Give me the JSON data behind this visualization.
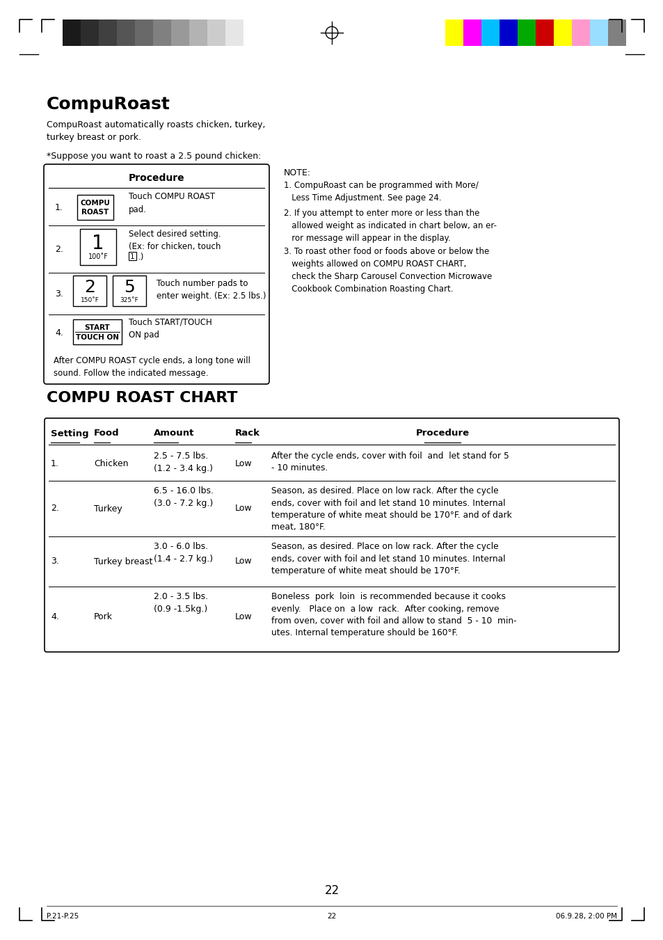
{
  "page_title": "CompuRoast",
  "page_subtitle": "CompuRoast automatically roasts chicken, turkey,\nturkey breast or pork.",
  "suppose_text": "*Suppose you want to roast a 2.5 pound chicken:",
  "procedure_title": "Procedure",
  "procedure_footer": "After COMPU ROAST cycle ends, a long tone will\nsound. Follow the indicated message.",
  "note_title": "NOTE:",
  "notes": [
    "1. CompuRoast can be programmed with More/\n   Less Time Adjustment. See page 24.",
    "2. If you attempt to enter more or less than the\n   allowed weight as indicated in chart below, an er-\n   ror message will appear in the display.",
    "3. To roast other food or foods above or below the\n   weights allowed on COMPU ROAST CHART,\n   check the Sharp Carousel Convection Microwave\n   Cookbook Combination Roasting Chart."
  ],
  "chart_title": "COMPU ROAST CHART",
  "chart_headers": [
    "Setting",
    "Food",
    "Amount",
    "Rack",
    "Procedure"
  ],
  "chart_rows": [
    {
      "setting": "1.",
      "food": "Chicken",
      "amount": "2.5 - 7.5 lbs.\n(1.2 - 3.4 kg.)",
      "rack": "Low",
      "procedure": "After the cycle ends, cover with foil  and  let stand for 5\n- 10 minutes."
    },
    {
      "setting": "2.",
      "food": "Turkey",
      "amount": "6.5 - 16.0 lbs.\n(3.0 - 7.2 kg.)",
      "rack": "Low",
      "procedure": "Season, as desired. Place on low rack. After the cycle\nends, cover with foil and let stand 10 minutes. Internal\ntemperature of white meat should be 170°F. and of dark\nmeat, 180°F."
    },
    {
      "setting": "3.",
      "food": "Turkey breast",
      "amount": "3.0 - 6.0 lbs.\n(1.4 - 2.7 kg.)",
      "rack": "Low",
      "procedure": "Season, as desired. Place on low rack. After the cycle\nends, cover with foil and let stand 10 minutes. Internal\ntemperature of white meat should be 170°F."
    },
    {
      "setting": "4.",
      "food": "Pork",
      "amount": "2.0 - 3.5 lbs.\n(0.9 -1.5kg.)",
      "rack": "Low",
      "procedure": "Boneless  pork  loin  is recommended because it cooks\nevenly.   Place on  a low  rack.  After cooking, remove\nfrom oven, cover with foil and allow to stand  5 - 10  min-\nutes. Internal temperature should be 160°F."
    }
  ],
  "page_number": "22",
  "footer_left": "P.21-P.25",
  "footer_center": "22",
  "footer_right": "06.9.28, 2:00 PM",
  "color_bar_left_colors": [
    "#1a1a1a",
    "#2d2d2d",
    "#404040",
    "#555555",
    "#696969",
    "#808080",
    "#999999",
    "#b3b3b3",
    "#cccccc",
    "#e6e6e6",
    "#ffffff"
  ],
  "color_bar_right_colors": [
    "#ffff00",
    "#ff00ff",
    "#00bfff",
    "#0000cc",
    "#00aa00",
    "#cc0000",
    "#ffff00",
    "#ff99cc",
    "#99ddff",
    "#808080"
  ]
}
